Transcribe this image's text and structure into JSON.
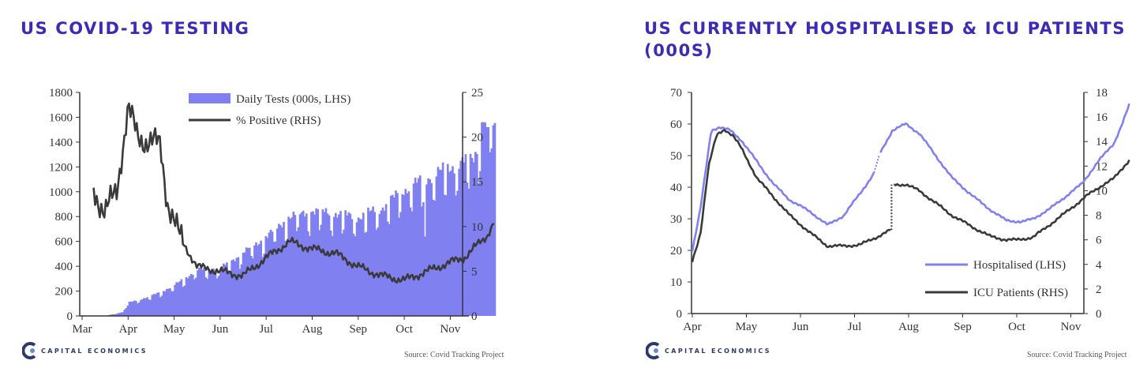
{
  "chart_data": [
    {
      "type": "bar+line",
      "title": "US COVID-19 TESTING",
      "x_labels": [
        "Mar",
        "Apr",
        "May",
        "Jun",
        "Jul",
        "Aug",
        "Sep",
        "Oct",
        "Nov"
      ],
      "y_left": {
        "ticks": [
          0,
          200,
          400,
          600,
          800,
          1000,
          1200,
          1400,
          1600,
          1800
        ],
        "range": [
          0,
          1800
        ]
      },
      "y_right": {
        "ticks": [
          0,
          5,
          10,
          15,
          20,
          25
        ],
        "range": [
          0,
          25
        ]
      },
      "legend": [
        "Daily Tests (000s, LHS)",
        "% Positive (RHS)"
      ],
      "series": [
        {
          "name": "Daily Tests (000s, LHS)",
          "axis": "left",
          "kind": "bar",
          "color": "#8080f0",
          "knots": [
            [
              0.5,
              0
            ],
            [
              0.9,
              30
            ],
            [
              1.0,
              100
            ],
            [
              1.5,
              150
            ],
            [
              2.0,
              230
            ],
            [
              2.5,
              350
            ],
            [
              3.0,
              360
            ],
            [
              3.5,
              480
            ],
            [
              4.0,
              600
            ],
            [
              4.5,
              750
            ],
            [
              5.0,
              800
            ],
            [
              5.5,
              780
            ],
            [
              6.0,
              750
            ],
            [
              6.5,
              820
            ],
            [
              7.0,
              960
            ],
            [
              7.5,
              1050
            ],
            [
              8.0,
              1130
            ],
            [
              8.5,
              1200
            ],
            [
              8.75,
              1420
            ]
          ],
          "spikes": [
            [
              8.7,
              1560
            ],
            [
              8.82,
              1520
            ],
            [
              8.9,
              1350
            ]
          ],
          "dips": [
            [
              7.45,
              640
            ]
          ],
          "x_range": [
            0.5,
            8.97
          ],
          "points": 240
        },
        {
          "name": "% Positive (RHS)",
          "axis": "right",
          "kind": "line",
          "color": "#3a3a3a",
          "knots": [
            [
              0.25,
              14.2
            ],
            [
              0.5,
              11.5
            ],
            [
              0.75,
              14.0
            ],
            [
              1.0,
              23.3
            ],
            [
              1.2,
              20.0
            ],
            [
              1.5,
              19.5
            ],
            [
              1.7,
              19.0
            ],
            [
              1.85,
              13.0
            ],
            [
              2.1,
              9.0
            ],
            [
              2.5,
              5.5
            ],
            [
              3.0,
              5.0
            ],
            [
              3.5,
              4.5
            ],
            [
              4.0,
              6.5
            ],
            [
              4.5,
              8.3
            ],
            [
              5.0,
              7.5
            ],
            [
              5.5,
              7.0
            ],
            [
              6.0,
              5.5
            ],
            [
              6.5,
              4.5
            ],
            [
              7.0,
              4.0
            ],
            [
              7.5,
              5.0
            ],
            [
              8.0,
              6.0
            ],
            [
              8.3,
              6.5
            ],
            [
              8.6,
              8.0
            ],
            [
              8.8,
              9.0
            ],
            [
              8.95,
              10.5
            ]
          ],
          "x_range": [
            0.25,
            8.95
          ],
          "points": 260
        }
      ],
      "source": "Source: Covid Tracking Project",
      "brand": "CAPITAL ECONOMICS"
    },
    {
      "type": "line",
      "title": "US CURRENTLY HOSPITALISED & ICU PATIENTS (000S)",
      "x_labels": [
        "Apr",
        "May",
        "Jun",
        "Jul",
        "Aug",
        "Sep",
        "Oct",
        "Nov"
      ],
      "y_left": {
        "ticks": [
          0,
          10,
          20,
          30,
          40,
          50,
          60,
          70
        ],
        "range": [
          0,
          70
        ]
      },
      "y_right": {
        "ticks": [
          0,
          2,
          4,
          6,
          8,
          10,
          12,
          14,
          16,
          18
        ],
        "range": [
          0,
          18
        ]
      },
      "legend": [
        "Hospitalised (LHS)",
        "ICU Patients (RHS)"
      ],
      "series": [
        {
          "name": "Hospitalised (LHS)",
          "axis": "left",
          "color": "#8080f0",
          "knots": [
            [
              0.0,
              20
            ],
            [
              0.15,
              33
            ],
            [
              0.35,
              58
            ],
            [
              0.5,
              59
            ],
            [
              0.7,
              58
            ],
            [
              0.9,
              55
            ],
            [
              1.2,
              48
            ],
            [
              1.5,
              41
            ],
            [
              1.8,
              36
            ],
            [
              2.2,
              32
            ],
            [
              2.5,
              28
            ],
            [
              2.8,
              31
            ],
            [
              3.1,
              38
            ],
            [
              3.35,
              44
            ],
            [
              3.45,
              50
            ],
            [
              3.7,
              58
            ],
            [
              3.95,
              60
            ],
            [
              4.2,
              57
            ],
            [
              4.5,
              50
            ],
            [
              4.8,
              43
            ],
            [
              5.2,
              37
            ],
            [
              5.5,
              33
            ],
            [
              5.8,
              29.5
            ],
            [
              6.1,
              29
            ],
            [
              6.3,
              30
            ],
            [
              6.6,
              33
            ],
            [
              6.9,
              37
            ],
            [
              7.2,
              41
            ],
            [
              7.5,
              48
            ],
            [
              7.8,
              54
            ],
            [
              7.95,
              60
            ],
            [
              8.08,
              66
            ]
          ],
          "gap": [
            3.36,
            3.46
          ],
          "x_range": [
            0.0,
            8.08
          ],
          "points": 260
        },
        {
          "name": "ICU Patients (RHS)",
          "axis": "right",
          "color": "#3a3a3a",
          "knots": [
            [
              0.0,
              4.2
            ],
            [
              0.15,
              6.5
            ],
            [
              0.3,
              12.0
            ],
            [
              0.45,
              14.5
            ],
            [
              0.6,
              15.0
            ],
            [
              0.75,
              14.5
            ],
            [
              0.9,
              13.5
            ],
            [
              1.2,
              11.0
            ],
            [
              1.5,
              9.5
            ],
            [
              1.8,
              8.0
            ],
            [
              2.2,
              6.5
            ],
            [
              2.5,
              5.5
            ],
            [
              2.8,
              5.5
            ],
            [
              3.1,
              5.6
            ],
            [
              3.4,
              6.2
            ],
            [
              3.67,
              6.8
            ],
            [
              3.7,
              10.5
            ],
            [
              3.95,
              10.5
            ],
            [
              4.2,
              10.0
            ],
            [
              4.5,
              9.0
            ],
            [
              4.8,
              8.0
            ],
            [
              5.2,
              7.0
            ],
            [
              5.5,
              6.3
            ],
            [
              5.8,
              6.0
            ],
            [
              6.0,
              6.0
            ],
            [
              6.3,
              6.2
            ],
            [
              6.6,
              7.2
            ],
            [
              6.9,
              8.2
            ],
            [
              7.3,
              9.6
            ],
            [
              7.6,
              10.5
            ],
            [
              7.8,
              11.0
            ],
            [
              8.08,
              12.5
            ]
          ],
          "dotted": [
            3.67,
            3.7
          ],
          "x_range": [
            0.0,
            8.08
          ],
          "points": 260
        }
      ],
      "source": "Source: Covid Tracking Project",
      "brand": "CAPITAL ECONOMICS"
    }
  ],
  "colors": {
    "title": "#3b2bb5",
    "bars": "#8080f0",
    "line_dark": "#3a3a3a",
    "line_light": "#8080f0"
  }
}
